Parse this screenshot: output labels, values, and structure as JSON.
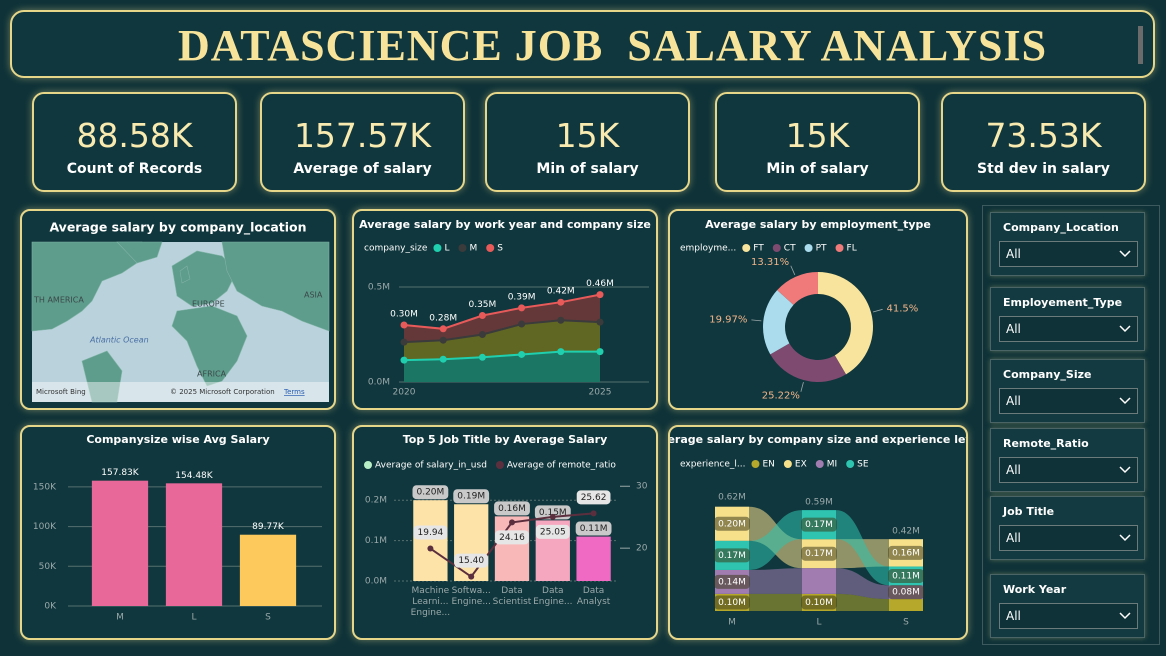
{
  "header": {
    "title": "DATASCIENCE JOB  SALARY ANALYSIS"
  },
  "kpis": [
    {
      "value": "88.58K",
      "label": "Count of Records"
    },
    {
      "value": "157.57K",
      "label": "Average of salary"
    },
    {
      "value": "15K",
      "label": "Min of salary"
    },
    {
      "value": "15K",
      "label": "Min of salary"
    },
    {
      "value": "73.53K",
      "label": "Std dev in salary"
    }
  ],
  "map": {
    "title": "Average salary by company_location",
    "labels": [
      "TH AMERICA",
      "EUROPE",
      "ASIA",
      "Atlantic Ocean",
      "AFRICA"
    ],
    "logo": "Microsoft Bing",
    "attribution": "© 2025 Microsoft Corporation",
    "terms": "Terms"
  },
  "slicers": [
    {
      "label": "Company_Location",
      "value": "All"
    },
    {
      "label": "Employement_Type",
      "value": "All"
    },
    {
      "label": "Company_Size",
      "value": "All"
    },
    {
      "label": "Remote_Ratio",
      "value": "All"
    },
    {
      "label": "Job Title",
      "value": "All"
    },
    {
      "label": "Work Year",
      "value": "All"
    }
  ],
  "chart_data": [
    {
      "type": "line",
      "title": "Average salary by work year and company size",
      "legend_title": "company_size",
      "x": [
        2020,
        2021,
        2022,
        2023,
        2024,
        2025
      ],
      "xlim": [
        2020,
        2025
      ],
      "xticks": [
        2020,
        2025
      ],
      "ylim": [
        0,
        500000
      ],
      "yticks": [
        {
          "value": 0,
          "label": "0.0M"
        },
        {
          "value": 500000,
          "label": "0.5M"
        }
      ],
      "grid": true,
      "series": [
        {
          "name": "L",
          "color": "#1fcfae",
          "fill": "#0f7a70",
          "values": [
            115000,
            120000,
            130000,
            145000,
            160000,
            160000
          ]
        },
        {
          "name": "M",
          "color": "#3b3b3b",
          "fill": "#5f7020",
          "values": [
            210000,
            220000,
            250000,
            305000,
            325000,
            315000
          ]
        },
        {
          "name": "S",
          "color": "#e85a5a",
          "fill": "#733838",
          "values": [
            300000,
            280000,
            350000,
            390000,
            420000,
            460000
          ],
          "value_labels": [
            "0.30M",
            "0.28M",
            "0.35M",
            "0.39M",
            "0.42M",
            "0.46M"
          ]
        }
      ]
    },
    {
      "type": "pie",
      "title": "Average salary by employment_type",
      "legend_title": "employme...",
      "categories": [
        "FT",
        "CT",
        "PT",
        "FL"
      ],
      "values": [
        41.5,
        25.22,
        19.97,
        13.31
      ],
      "value_labels": [
        "41.5%",
        "25.22%",
        "19.97%",
        "13.31%"
      ],
      "colors": [
        "#f8e49c",
        "#7e4a70",
        "#aadcee",
        "#f07a7a"
      ],
      "label_color": "#f2b48a",
      "donut": true
    },
    {
      "type": "bar",
      "title": "Companysize wise Avg Salary",
      "categories": [
        "M",
        "L",
        "S"
      ],
      "values": [
        157830,
        154480,
        89770
      ],
      "value_labels": [
        "157.83K",
        "154.48K",
        "89.77K"
      ],
      "colors": [
        "#e8689a",
        "#e8689a",
        "#fdc95c"
      ],
      "ylim": [
        0,
        170000
      ],
      "yticks": [
        {
          "value": 0,
          "label": "0K"
        },
        {
          "value": 50000,
          "label": "50K"
        },
        {
          "value": 100000,
          "label": "100K"
        },
        {
          "value": 150000,
          "label": "150K"
        }
      ],
      "grid": true
    },
    {
      "type": "combo",
      "title": "Top 5 Job Title by Average Salary",
      "categories": [
        "Machine Learni... Engine...",
        "Softwa... Engine...",
        "Data Scientist",
        "Data Engine...",
        "Data Analyst"
      ],
      "ylim": [
        0,
        250000
      ],
      "yticks": [
        {
          "value": 0,
          "label": "0.0M"
        },
        {
          "value": 100000,
          "label": "0.1M"
        },
        {
          "value": 200000,
          "label": "0.2M"
        }
      ],
      "y2lim": [
        14.7,
        31
      ],
      "y2ticks": [
        20,
        30
      ],
      "series": [
        {
          "name": "Average of salary_in_usd",
          "kind": "bar",
          "color": "#b8efc6",
          "colors": [
            "#fde3a7",
            "#fde3a7",
            "#f9b8b8",
            "#f6a7c0",
            "#f06ac4"
          ],
          "values": [
            200000,
            190000,
            160000,
            150000,
            110000
          ],
          "value_labels": [
            "0.20M",
            "0.19M",
            "0.16M",
            "0.15M",
            "0.11M"
          ]
        },
        {
          "name": "Average of remote_ratio",
          "kind": "line",
          "axis": "y2",
          "color": "#5c2f3f",
          "values": [
            19.94,
            15.4,
            24.16,
            25.05,
            25.62
          ],
          "value_labels": [
            "19.94",
            "15.40",
            "24.16",
            "25.05",
            "25.62"
          ]
        }
      ]
    },
    {
      "type": "ribbon",
      "title": "Average salary by company size and experience level",
      "legend_title": "experience_l...",
      "categories": [
        "M",
        "L",
        "S"
      ],
      "totals": [
        0.62,
        0.59,
        0.42
      ],
      "total_labels": [
        "0.62M",
        "0.59M",
        "0.42M"
      ],
      "series": [
        {
          "name": "EN",
          "color": "#b5a82a",
          "values": [
            0.1,
            0.1,
            0.07
          ],
          "value_labels": [
            "0.10M",
            "0.10M",
            null
          ]
        },
        {
          "name": "EX",
          "color": "#f7e08a",
          "values": [
            0.2,
            0.17,
            0.16
          ],
          "value_labels": [
            "0.20M",
            "0.17M",
            "0.16M"
          ]
        },
        {
          "name": "MI",
          "color": "#a07cb0",
          "values": [
            0.14,
            0.15,
            0.08
          ],
          "value_labels": [
            "0.14M",
            null,
            "0.08M"
          ]
        },
        {
          "name": "SE",
          "color": "#2ec4b0",
          "values": [
            0.17,
            0.17,
            0.11
          ],
          "value_labels": [
            "0.17M",
            "0.17M",
            "0.11M"
          ]
        }
      ]
    }
  ]
}
